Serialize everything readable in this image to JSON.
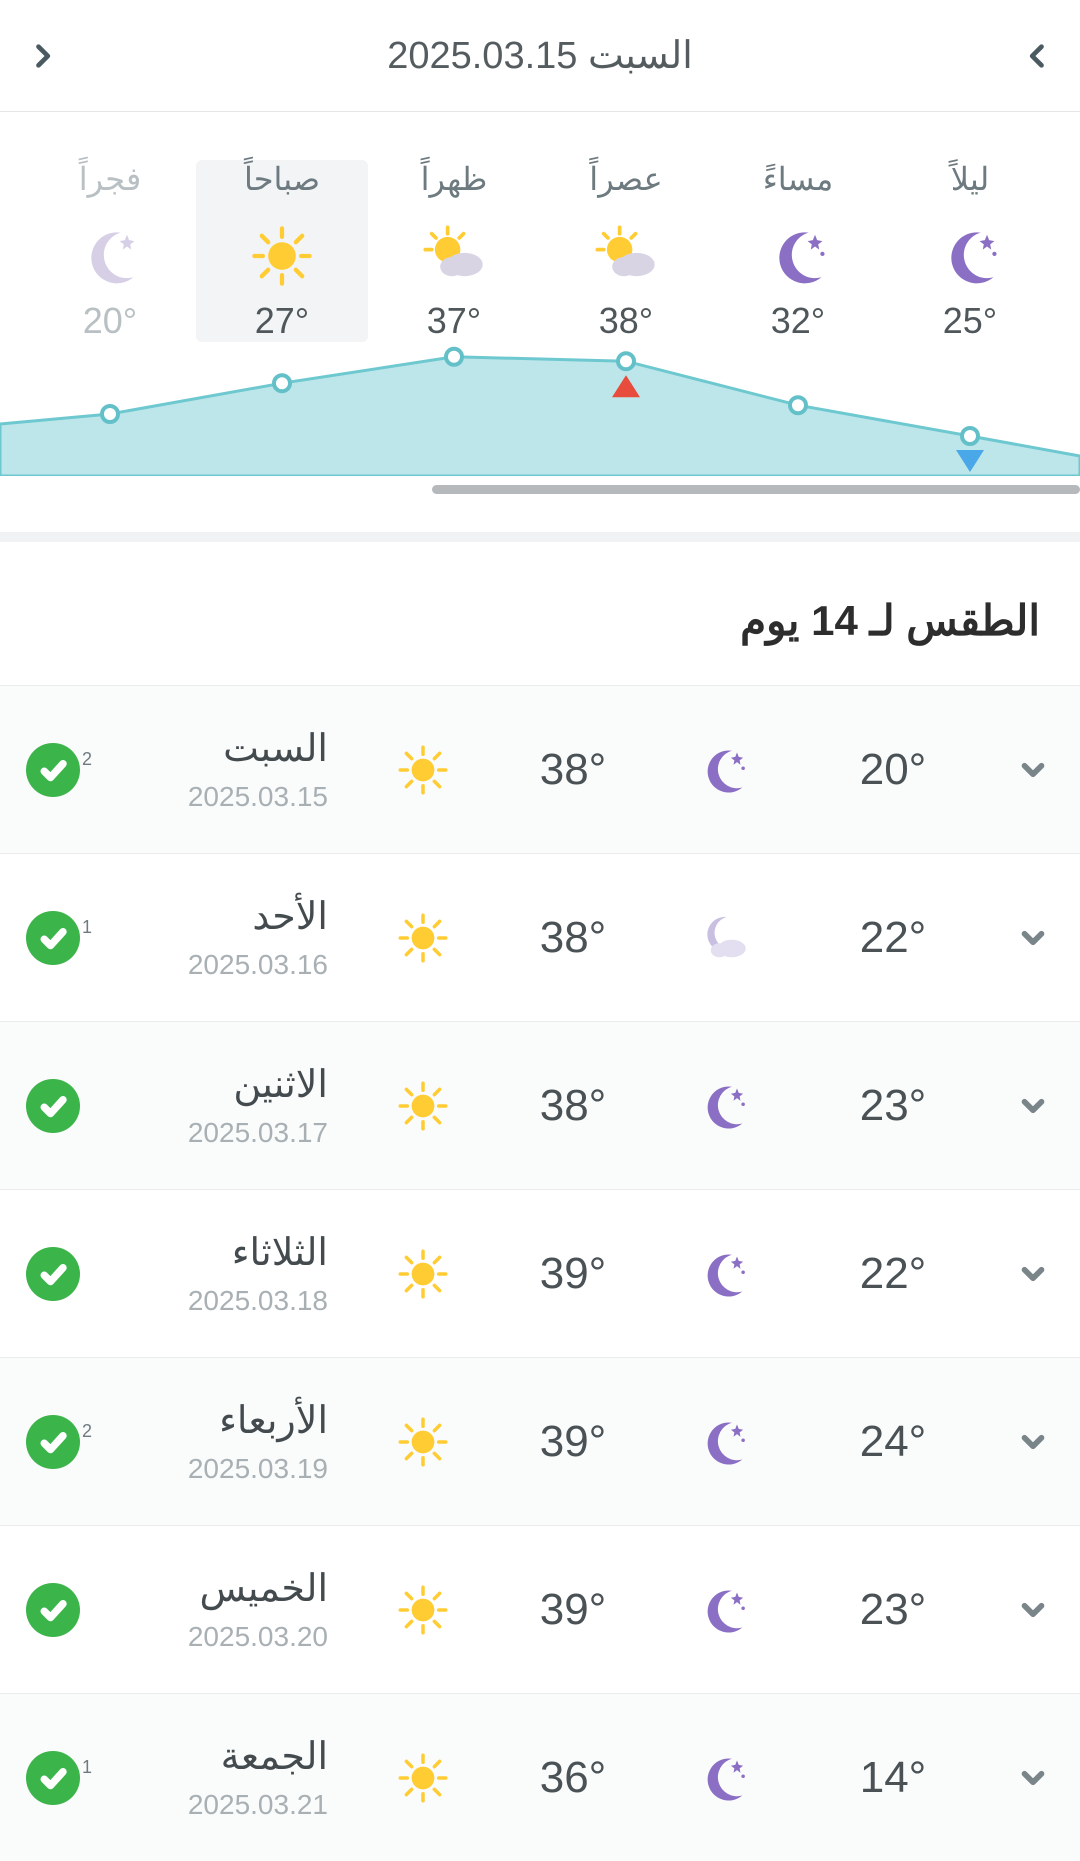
{
  "colors": {
    "text": "#4a5256",
    "muted": "#a9b0b4",
    "dim": "#b8c0c4",
    "border": "#ececec",
    "rowAlt": "#fafbfb",
    "badge": "#3bb54a",
    "chartFill": "#bce6ea",
    "chartStroke": "#6ec8d0",
    "triUp": "#e74c3c",
    "triDown": "#4aa8e8",
    "sun": "#ffcc33",
    "moon": "#8a6fc4",
    "cloud": "#d9d4e4"
  },
  "nav": {
    "title": "السبت 2025.03.15"
  },
  "dayparts": {
    "chart": {
      "type": "area",
      "ymin": 15,
      "ymax": 40,
      "fill": "#bce6ea",
      "stroke": "#6ec8d0",
      "stroke_width": 3,
      "dot_radius": 8,
      "max_marker_index": 3,
      "min_marker_index": 0
    },
    "order_left_to_right": [
      "night",
      "evening",
      "afternoon",
      "noon",
      "morning",
      "dawn"
    ],
    "items": {
      "dawn": {
        "label": "فجراً",
        "temp": "20°",
        "icon": "moon",
        "dim": true,
        "selected": false,
        "value": 20
      },
      "morning": {
        "label": "صباحاً",
        "temp": "27°",
        "icon": "sun",
        "dim": false,
        "selected": true,
        "value": 27
      },
      "noon": {
        "label": "ظهراً",
        "temp": "37°",
        "icon": "sun-cloud",
        "dim": false,
        "selected": false,
        "value": 37
      },
      "afternoon": {
        "label": "عصراً",
        "temp": "38°",
        "icon": "sun-cloud",
        "dim": false,
        "selected": false,
        "value": 38
      },
      "evening": {
        "label": "مساءً",
        "temp": "32°",
        "icon": "moon",
        "dim": false,
        "selected": false,
        "value": 32
      },
      "night": {
        "label": "ليلاً",
        "temp": "25°",
        "icon": "moon",
        "dim": false,
        "selected": false,
        "value": 25
      }
    }
  },
  "forecast": {
    "title": "الطقس لـ 14 يوم",
    "days": [
      {
        "name": "السبت",
        "date": "2025.03.15",
        "hi": "38°",
        "hiIcon": "sun",
        "lo": "20°",
        "loIcon": "moon",
        "badge": "2"
      },
      {
        "name": "الأحد",
        "date": "2025.03.16",
        "hi": "38°",
        "hiIcon": "sun",
        "lo": "22°",
        "loIcon": "moon-cloud",
        "badge": "1"
      },
      {
        "name": "الاثنين",
        "date": "2025.03.17",
        "hi": "38°",
        "hiIcon": "sun",
        "lo": "23°",
        "loIcon": "moon",
        "badge": ""
      },
      {
        "name": "الثلاثاء",
        "date": "2025.03.18",
        "hi": "39°",
        "hiIcon": "sun",
        "lo": "22°",
        "loIcon": "moon",
        "badge": ""
      },
      {
        "name": "الأربعاء",
        "date": "2025.03.19",
        "hi": "39°",
        "hiIcon": "sun",
        "lo": "24°",
        "loIcon": "moon",
        "badge": "2"
      },
      {
        "name": "الخميس",
        "date": "2025.03.20",
        "hi": "39°",
        "hiIcon": "sun",
        "lo": "23°",
        "loIcon": "moon",
        "badge": ""
      },
      {
        "name": "الجمعة",
        "date": "2025.03.21",
        "hi": "36°",
        "hiIcon": "sun",
        "lo": "14°",
        "loIcon": "moon",
        "badge": "1"
      }
    ]
  }
}
